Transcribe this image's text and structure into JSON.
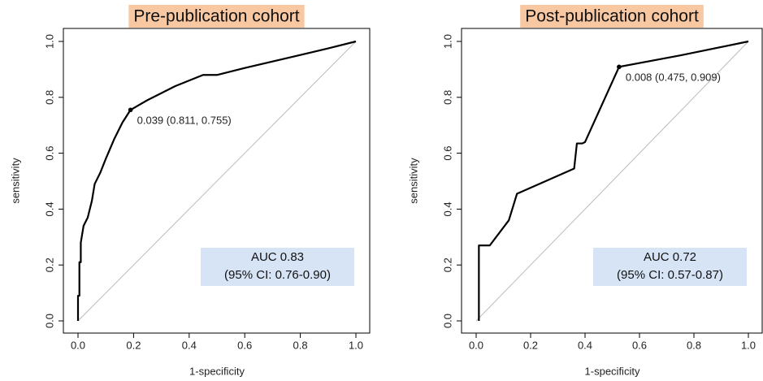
{
  "chart_data": [
    {
      "type": "line",
      "title": "Pre-publication cohort",
      "xlabel": "1-specificity",
      "ylabel": "sensitivity",
      "x": [
        0,
        0,
        0.005,
        0.005,
        0.01,
        0.01,
        0.02,
        0.035,
        0.05,
        0.06,
        0.08,
        0.1,
        0.13,
        0.16,
        0.189,
        0.25,
        0.35,
        0.45,
        0.5,
        0.6,
        0.75,
        0.9,
        1
      ],
      "values": [
        0,
        0.09,
        0.09,
        0.21,
        0.21,
        0.28,
        0.34,
        0.37,
        0.43,
        0.49,
        0.53,
        0.58,
        0.65,
        0.71,
        0.755,
        0.79,
        0.84,
        0.88,
        0.88,
        0.905,
        0.94,
        0.975,
        1
      ],
      "color": "#000000",
      "marker": {
        "x": 0.189,
        "y": 0.755,
        "label": "0.039 (0.811, 0.755)"
      },
      "auc": [
        "AUC 0.83",
        "(95% CI: 0.76-0.90)"
      ],
      "xlim": [
        0,
        1
      ],
      "ylim": [
        0,
        1
      ],
      "xticks": [
        {
          "value": 0,
          "label": "0.0"
        },
        0.2,
        0.4,
        0.6,
        0.8,
        {
          "value": 1,
          "label": "1.0"
        }
      ],
      "yticks": [
        {
          "value": 0,
          "label": "0.0"
        },
        0.2,
        0.4,
        0.6,
        0.8,
        {
          "value": 1,
          "label": "1.0"
        }
      ]
    },
    {
      "type": "line",
      "title": "Post-publication cohort",
      "xlabel": "1-specificity",
      "ylabel": "sensitivity",
      "x": [
        0.01,
        0.01,
        0.05,
        0.12,
        0.15,
        0.36,
        0.37,
        0.39,
        0.4,
        0.525,
        0.75,
        1
      ],
      "values": [
        0,
        0.27,
        0.27,
        0.36,
        0.455,
        0.545,
        0.635,
        0.635,
        0.64,
        0.909,
        0.95,
        1
      ],
      "color": "#000000",
      "marker": {
        "x": 0.525,
        "y": 0.909,
        "label": "0.008 (0.475, 0.909)"
      },
      "auc": [
        "AUC 0.72",
        "(95% CI: 0.57-0.87)"
      ],
      "xlim": [
        0,
        1
      ],
      "ylim": [
        0,
        1
      ],
      "xticks": [
        {
          "value": 0,
          "label": "0.0"
        },
        0.2,
        0.4,
        0.6,
        0.8,
        {
          "value": 1,
          "label": "1.0"
        }
      ],
      "yticks": [
        {
          "value": 0,
          "label": "0.0"
        },
        0.2,
        0.4,
        0.6,
        0.8,
        {
          "value": 1,
          "label": "1.0"
        }
      ]
    }
  ]
}
